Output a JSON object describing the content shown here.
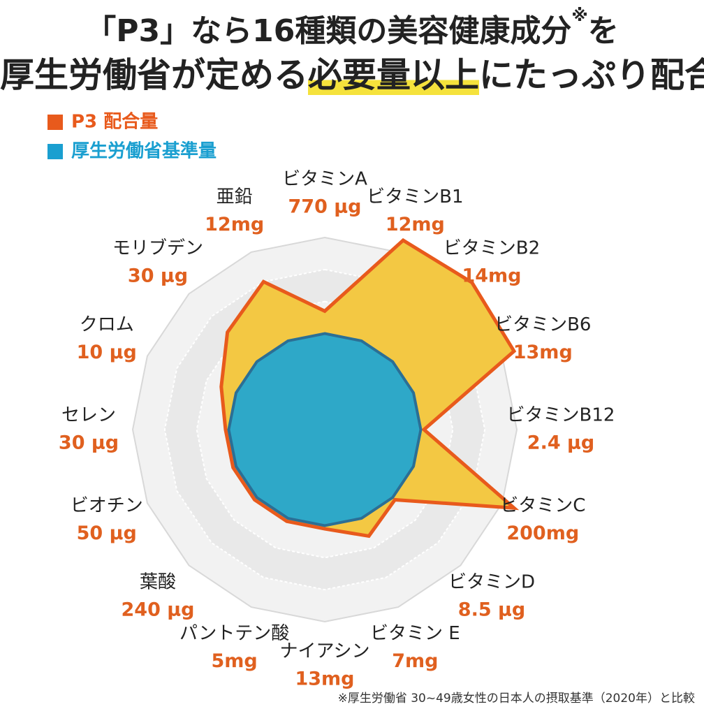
{
  "chart_data": {
    "type": "radar",
    "title_line1": {
      "text": "「P3」なら16種類の美容健康成分",
      "mark": "※",
      "end": "を"
    },
    "title_line2": {
      "before": "厚生労働省が定める",
      "highlight": "必要量以上",
      "after": "にたっぷり配合"
    },
    "categories": [
      "ビタミンA",
      "ビタミンB1",
      "ビタミンB2",
      "ビタミンB6",
      "ビタミンB12",
      "ビタミンC",
      "ビタミンD",
      "ビタミン E",
      "ナイアシン",
      "パントテン酸",
      "葉酸",
      "ビオチン",
      "セレン",
      "クロム",
      "モリブデン",
      "亜鉛"
    ],
    "amounts": [
      "770 μg",
      "12mg",
      "14mg",
      "13mg",
      "2.4 μg",
      "200mg",
      "8.5 μg",
      "7mg",
      "13mg",
      "5mg",
      "240 μg",
      "50 μg",
      "30 μg",
      "10 μg",
      "30 μg",
      "12mg"
    ],
    "series": [
      {
        "name": "P3 配合量",
        "color": "#e85a1c",
        "fill": "#f3c843",
        "values": [
          3.7,
          6.4,
          6.5,
          6.4,
          3.1,
          6.4,
          3.1,
          3.6,
          3.1,
          3.1,
          3.1,
          3.1,
          3.1,
          3.5,
          4.3,
          5.0
        ]
      },
      {
        "name": "厚生労働省基準量",
        "color": "#1a9fd0",
        "fill": "#2ea8c8",
        "values": [
          3.0,
          3.0,
          3.0,
          3.0,
          3.0,
          3.0,
          3.0,
          3.0,
          3.0,
          3.0,
          3.0,
          3.0,
          3.0,
          3.0,
          3.0,
          3.0
        ]
      }
    ],
    "rlim": [
      0,
      6
    ],
    "rticks": [
      1,
      2,
      3,
      4,
      5,
      6
    ],
    "footnote": "※厚生労働省 30~49歳女性の日本人の摂取基準（2020年）と比較"
  }
}
